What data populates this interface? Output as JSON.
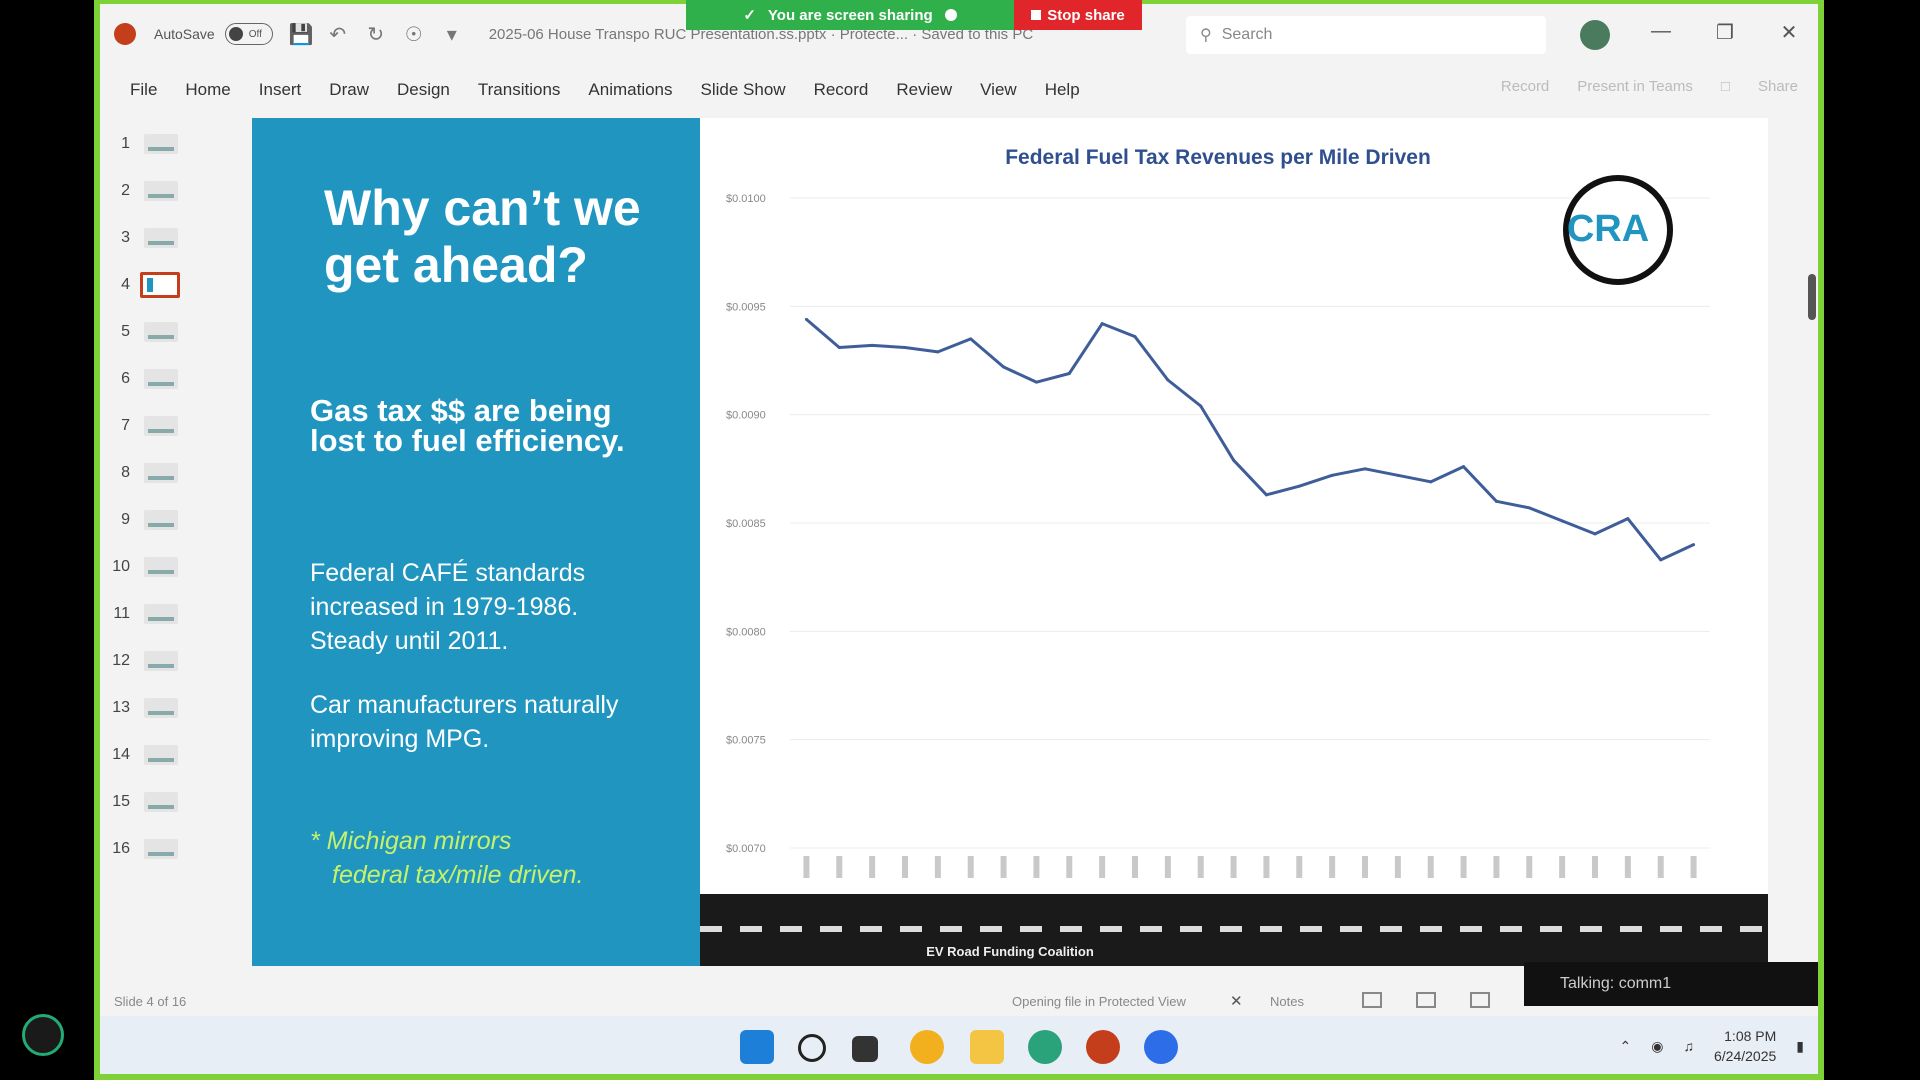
{
  "titlebar": {
    "autosave_label": "AutoSave",
    "autosave_state": "Off",
    "doc_title": "2025-06 House Transpo RUC Presentation.ss.pptx · Protecte... · Saved to this PC",
    "search_placeholder": "Search"
  },
  "share": {
    "banner_text": "You are screen sharing",
    "stop_label": "Stop share"
  },
  "ribbon": {
    "tabs": [
      "File",
      "Home",
      "Insert",
      "Draw",
      "Design",
      "Transitions",
      "Animations",
      "Slide Show",
      "Record",
      "Review",
      "View",
      "Help"
    ],
    "record_label": "Record",
    "present_label": "Present in Teams",
    "share_label": "Share"
  },
  "thumbnails": [
    "1",
    "2",
    "3",
    "4",
    "5",
    "6",
    "7",
    "8",
    "9",
    "10",
    "11",
    "12",
    "13",
    "14",
    "15",
    "16"
  ],
  "active_slide_index": 4,
  "slide": {
    "heading": "Why can’t we get ahead?",
    "subheading": "Gas tax $$ are being lost to fuel efficiency.",
    "cafe_text": "Federal CAFÉ standards increased in 1979-1986. Steady until 2011.",
    "car_text": "Car manufacturers naturally improving MPG.",
    "michigan_line1": "* Michigan mirrors",
    "michigan_line2": "federal tax/mile driven.",
    "logo_text": "CRA",
    "road_caption": "EV Road Funding Coalition"
  },
  "chart_data": {
    "type": "line",
    "title": "Federal Fuel Tax Revenues per Mile Driven",
    "ylabel": "",
    "xlabel": "",
    "ylim": [
      0.007,
      0.01
    ],
    "yticks": [
      "$0.0100",
      "$0.0095",
      "$0.0090",
      "$0.0085",
      "$0.0080",
      "$0.0075",
      "$0.0070"
    ],
    "ytick_values": [
      0.01,
      0.0095,
      0.009,
      0.0085,
      0.008,
      0.0075,
      0.007
    ],
    "line_color": "#3e5d99",
    "grid": true,
    "values": [
      0.00944,
      0.00931,
      0.00932,
      0.00931,
      0.00929,
      0.00935,
      0.00922,
      0.00915,
      0.00919,
      0.00942,
      0.00936,
      0.00916,
      0.00904,
      0.00879,
      0.00863,
      0.00867,
      0.00872,
      0.00875,
      0.00872,
      0.00869,
      0.00876,
      0.0086,
      0.00857,
      0.00851,
      0.00845,
      0.00852,
      0.00833,
      0.0084
    ]
  },
  "statusbar": {
    "slide_label": "Slide 4 of 16",
    "protected_label": "Opening file in Protected View",
    "notes_label": "Notes",
    "talking_label": "Talking: comm1"
  },
  "taskbar": {
    "time": "1:08 PM",
    "date": "6/24/2025"
  },
  "colors": {
    "accent_green": "#7fd138",
    "slide_blue": "#1f95c0",
    "stop_red": "#e0252b",
    "michigan_green": "#c6f26b"
  }
}
